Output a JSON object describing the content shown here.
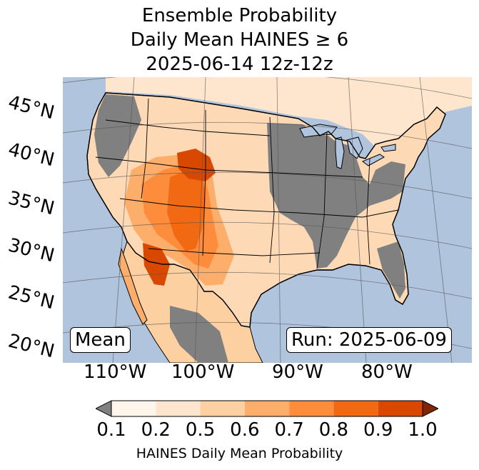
{
  "title": {
    "line1": "Ensemble Probability",
    "line2": "Daily Mean HAINES ≥ 6",
    "line3": "2025-06-14 12z-12z"
  },
  "map": {
    "latitude_labels": [
      "45°N",
      "40°N",
      "35°N",
      "30°N",
      "25°N",
      "20°N"
    ],
    "longitude_labels": [
      "110°W",
      "100°W",
      "90°W",
      "80°W"
    ],
    "stat_label": "Mean",
    "run_label": "Run: 2025-06-09",
    "colors": {
      "ocean": "#b0c4de",
      "no_data_gray": "#808080",
      "border": "#000000",
      "graticule": "#555555"
    }
  },
  "colorbar": {
    "label": "HAINES Daily Mean Probability",
    "ticks": [
      "0.1",
      "0.2",
      "0.5",
      "0.6",
      "0.7",
      "0.8",
      "0.9",
      "1.0"
    ],
    "under_color": "#808080",
    "over_color": "#7f2704",
    "colors": [
      "#fff5eb",
      "#fee6ce",
      "#fdd0a2",
      "#fdae6b",
      "#fd8d3c",
      "#f16913",
      "#d94801"
    ]
  }
}
